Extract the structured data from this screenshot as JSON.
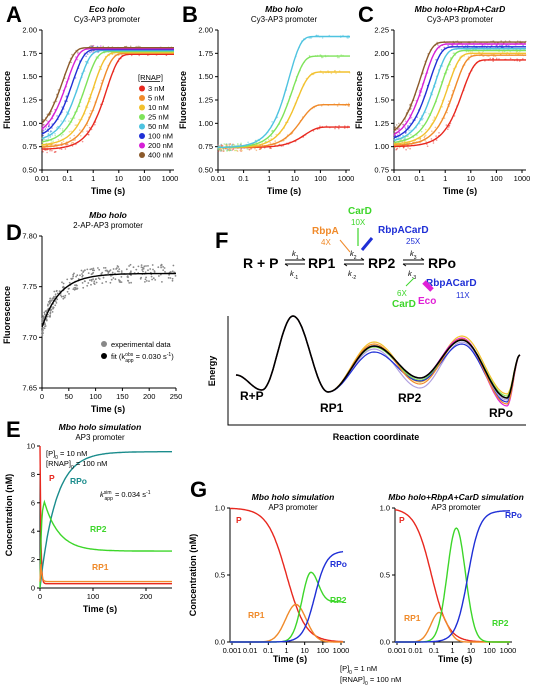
{
  "panel_labels": [
    "A",
    "B",
    "C",
    "D",
    "E",
    "F",
    "G"
  ],
  "panelA": {
    "title": "Eco holo",
    "subtitle": "Cy3-AP3 promoter",
    "ylabel": "Fluorescence",
    "xlabel": "Time (s)",
    "yticks": [
      "0.50",
      "0.75",
      "1.00",
      "1.25",
      "1.50",
      "1.75",
      "2.00"
    ],
    "xticks": [
      "0.01",
      "0.1",
      "1",
      "10",
      "100",
      "1000"
    ],
    "legend_title": "[RNAP]",
    "legend": [
      "3 nM",
      "5 nM",
      "10 nM",
      "25 nM",
      "50 nM",
      "100 nM",
      "200 nM",
      "400 nM"
    ]
  },
  "panelB": {
    "title": "Mbo holo",
    "subtitle": "Cy3-AP3 promoter",
    "ylabel": "Fluorescence",
    "xlabel": "Time (s)",
    "yticks": [
      "0.50",
      "0.75",
      "1.00",
      "1.25",
      "1.50",
      "1.75",
      "2.00"
    ],
    "xticks": [
      "0.01",
      "0.1",
      "1",
      "10",
      "100",
      "1000"
    ]
  },
  "panelC": {
    "title": "Mbo holo+RbpA+CarD",
    "subtitle": "Cy3-AP3 promoter",
    "ylabel": "Fluorescence",
    "xlabel": "Time (s)",
    "yticks": [
      "0.75",
      "1.00",
      "1.25",
      "1.50",
      "1.75",
      "2.00",
      "2.25"
    ],
    "xticks": [
      "0.01",
      "0.1",
      "1",
      "10",
      "100",
      "1000"
    ]
  },
  "panelD": {
    "title": "Mbo holo",
    "subtitle": "2-AP-AP3 promoter",
    "ylabel": "Fluorescence",
    "xlabel": "Time (s)",
    "yticks": [
      "7.65",
      "7.70",
      "7.75",
      "7.80"
    ],
    "xticks": [
      "0",
      "50",
      "100",
      "150",
      "200",
      "250"
    ],
    "legend": [
      "experimental data",
      "fit (k",
      "app",
      "obs",
      " = 0.030 s",
      ")"
    ]
  },
  "panelE": {
    "title": "Mbo holo simulation",
    "subtitle": "AP3 promoter",
    "ylabel": "Concentration (nM)",
    "xlabel": "Time (s)",
    "yticks": [
      "0",
      "2",
      "4",
      "6",
      "8",
      "10"
    ],
    "xticks": [
      "0",
      "100",
      "200"
    ],
    "cond1": "[P]",
    "cond1b": "0",
    "cond1c": " = 10 nM",
    "cond2": "[RNAP]",
    "cond2b": "0",
    "cond2c": " = 100 nM",
    "kapp": "k",
    "kapp_sup": "sim",
    "kapp_sub": "app",
    "kapp_val": " = 0.034 s",
    "species": [
      "P",
      "RPo",
      "RP2",
      "RP1"
    ]
  },
  "panelF": {
    "ylabel": "Energy",
    "xlabel": "Reaction coordinate",
    "scheme": [
      "R + P",
      "RP1",
      "RP2",
      "RPo"
    ],
    "states": [
      "R+P",
      "RP1",
      "RP2",
      "RPo"
    ],
    "k": [
      "k",
      "1",
      "k",
      "-1",
      "k",
      "2",
      "k",
      "-2",
      "k",
      "3",
      "k",
      "-3"
    ],
    "factors": {
      "RbpA": "RbpA",
      "RbpA_fold": "4X",
      "CarD": "CarD",
      "CarD_fold": "10X",
      "RbpACarD": "RbpACarD",
      "RbpACarD_fold": "25X",
      "CarD2": "CarD",
      "CarD2_fold": "6X",
      "Eco": "Eco",
      "RbpACarD2": "RbpACarD",
      "RbpACarD2_fold": "11X"
    }
  },
  "panelG": {
    "left_title": "Mbo holo simulation",
    "right_title": "Mbo holo+RbpA+CarD simulation",
    "subtitle": "AP3 promoter",
    "ylabel": "Concentration (nM)",
    "xlabel": "Time (s)",
    "yticks": [
      "0.0",
      "0.5",
      "1.0"
    ],
    "xticks": [
      "0.001",
      "0.01",
      "0.1",
      "1",
      "10",
      "100",
      "1000"
    ],
    "species": [
      "P",
      "RP1",
      "RP2",
      "RPo"
    ],
    "cond1": "[P]",
    "cond1b": "0",
    "cond1c": " = 1 nM",
    "cond2": "[RNAP]",
    "cond2b": "0",
    "cond2c": " = 100 nM"
  },
  "colors": {
    "c3": "#e8281f",
    "c5": "#f08a2a",
    "c10": "#f2c12e",
    "c25": "#7ee35a",
    "c50": "#4ec3e0",
    "c100": "#1f2fd6",
    "c200": "#d61fd6",
    "c400": "#8b5a2b",
    "P": "#e8281f",
    "RP1": "#f08a2a",
    "RP2": "#3dd62a",
    "RPo": "#1f2fd6",
    "RPoE": "#1a8c8c",
    "RbpA": "#f08a2a",
    "CarD": "#3dd62a",
    "RbpACarD": "#1f2fd6",
    "Eco": "#e020d6"
  },
  "chart_data": [
    {
      "panel": "A",
      "type": "line",
      "title": "Eco holo",
      "xlabel": "Time (s)",
      "ylabel": "Fluorescence",
      "x_scale": "log",
      "xlim": [
        0.01,
        1000
      ],
      "ylim": [
        0.5,
        2.0
      ],
      "series": [
        {
          "name": "3 nM",
          "kobs": 0.35,
          "y0": 0.72,
          "y1": 1.74
        },
        {
          "name": "5 nM",
          "kobs": 0.6,
          "y0": 0.74,
          "y1": 1.75
        },
        {
          "name": "10 nM",
          "kobs": 1.1,
          "y0": 0.76,
          "y1": 1.76
        },
        {
          "name": "25 nM",
          "kobs": 2.2,
          "y0": 0.78,
          "y1": 1.77
        },
        {
          "name": "50 nM",
          "kobs": 4,
          "y0": 0.8,
          "y1": 1.78
        },
        {
          "name": "100 nM",
          "kobs": 7,
          "y0": 0.82,
          "y1": 1.79
        },
        {
          "name": "200 nM",
          "kobs": 11,
          "y0": 0.84,
          "y1": 1.8
        },
        {
          "name": "400 nM",
          "kobs": 16,
          "y0": 0.86,
          "y1": 1.81
        }
      ]
    },
    {
      "panel": "B",
      "type": "line",
      "title": "Mbo holo",
      "xlabel": "Time (s)",
      "ylabel": "Fluorescence",
      "x_scale": "log",
      "xlim": [
        0.01,
        1000
      ],
      "ylim": [
        0.5,
        2.0
      ],
      "series": [
        {
          "name": "3 nM",
          "kobs": 0.05,
          "y0": 0.74,
          "y1": 0.96
        },
        {
          "name": "5 nM",
          "kobs": 0.07,
          "y0": 0.74,
          "y1": 1.2
        },
        {
          "name": "10 nM",
          "kobs": 0.1,
          "y0": 0.74,
          "y1": 1.55
        },
        {
          "name": "25 nM",
          "kobs": 0.15,
          "y0": 0.74,
          "y1": 1.72
        },
        {
          "name": "50 nM",
          "kobs": 0.2,
          "y0": 0.74,
          "y1": 1.93
        }
      ]
    },
    {
      "panel": "C",
      "type": "line",
      "title": "Mbo holo+RbpA+CarD",
      "xlabel": "Time (s)",
      "ylabel": "Fluorescence",
      "x_scale": "log",
      "xlim": [
        0.01,
        1000
      ],
      "ylim": [
        0.75,
        2.25
      ],
      "series": [
        {
          "name": "3 nM",
          "kobs": 0.25,
          "y0": 1.0,
          "y1": 1.93
        },
        {
          "name": "5 nM",
          "kobs": 0.5,
          "y0": 1.01,
          "y1": 1.98
        },
        {
          "name": "10 nM",
          "kobs": 0.9,
          "y0": 1.02,
          "y1": 2.0
        },
        {
          "name": "25 nM",
          "kobs": 1.6,
          "y0": 1.03,
          "y1": 2.03
        },
        {
          "name": "50 nM",
          "kobs": 2.8,
          "y0": 1.04,
          "y1": 2.05
        },
        {
          "name": "100 nM",
          "kobs": 4.5,
          "y0": 1.05,
          "y1": 2.07
        },
        {
          "name": "200 nM",
          "kobs": 7,
          "y0": 1.06,
          "y1": 2.1
        },
        {
          "name": "400 nM",
          "kobs": 10,
          "y0": 1.07,
          "y1": 2.12
        }
      ]
    },
    {
      "panel": "D",
      "type": "scatter",
      "title": "Mbo holo",
      "xlabel": "Time (s)",
      "ylabel": "Fluorescence",
      "xlim": [
        0,
        250
      ],
      "ylim": [
        7.65,
        7.8
      ],
      "fit": {
        "kobs": 0.03,
        "y0": 7.71,
        "y1": 7.763
      }
    },
    {
      "panel": "E",
      "type": "line",
      "title": "Mbo holo simulation",
      "xlabel": "Time (s)",
      "ylabel": "Concentration (nM)",
      "xlim": [
        0,
        250
      ],
      "ylim": [
        0,
        10
      ],
      "series": [
        {
          "name": "P",
          "final": 0.3
        },
        {
          "name": "RPo",
          "final": 9.6
        },
        {
          "name": "RP2",
          "peak": 6.1,
          "final": 2.6
        },
        {
          "name": "RP1",
          "final": 0.45
        }
      ]
    },
    {
      "panel": "G-left",
      "type": "line",
      "title": "Mbo holo simulation",
      "xlabel": "Time (s)",
      "ylabel": "Concentration (nM)",
      "x_scale": "log",
      "xlim": [
        0.001,
        1000
      ],
      "ylim": [
        0,
        1
      ],
      "series": [
        {
          "name": "P",
          "start": 1.0,
          "end": 0.0
        },
        {
          "name": "RP1",
          "peak": 0.28,
          "peak_t": 3
        },
        {
          "name": "RP2",
          "peak": 0.52,
          "peak_t": 20,
          "final": 0.3
        },
        {
          "name": "RPo",
          "final": 0.68
        }
      ]
    },
    {
      "panel": "G-right",
      "type": "line",
      "title": "Mbo holo+RbpA+CarD simulation",
      "xlabel": "Time (s)",
      "ylabel": "Concentration (nM)",
      "x_scale": "log",
      "xlim": [
        0.001,
        1000
      ],
      "ylim": [
        0,
        1
      ],
      "series": [
        {
          "name": "P",
          "start": 1.0,
          "end": 0.0
        },
        {
          "name": "RP1",
          "peak": 0.22,
          "peak_t": 0.2
        },
        {
          "name": "RP2",
          "peak": 0.85,
          "peak_t": 1.5,
          "final": 0.0
        },
        {
          "name": "RPo",
          "final": 0.98
        }
      ]
    }
  ]
}
